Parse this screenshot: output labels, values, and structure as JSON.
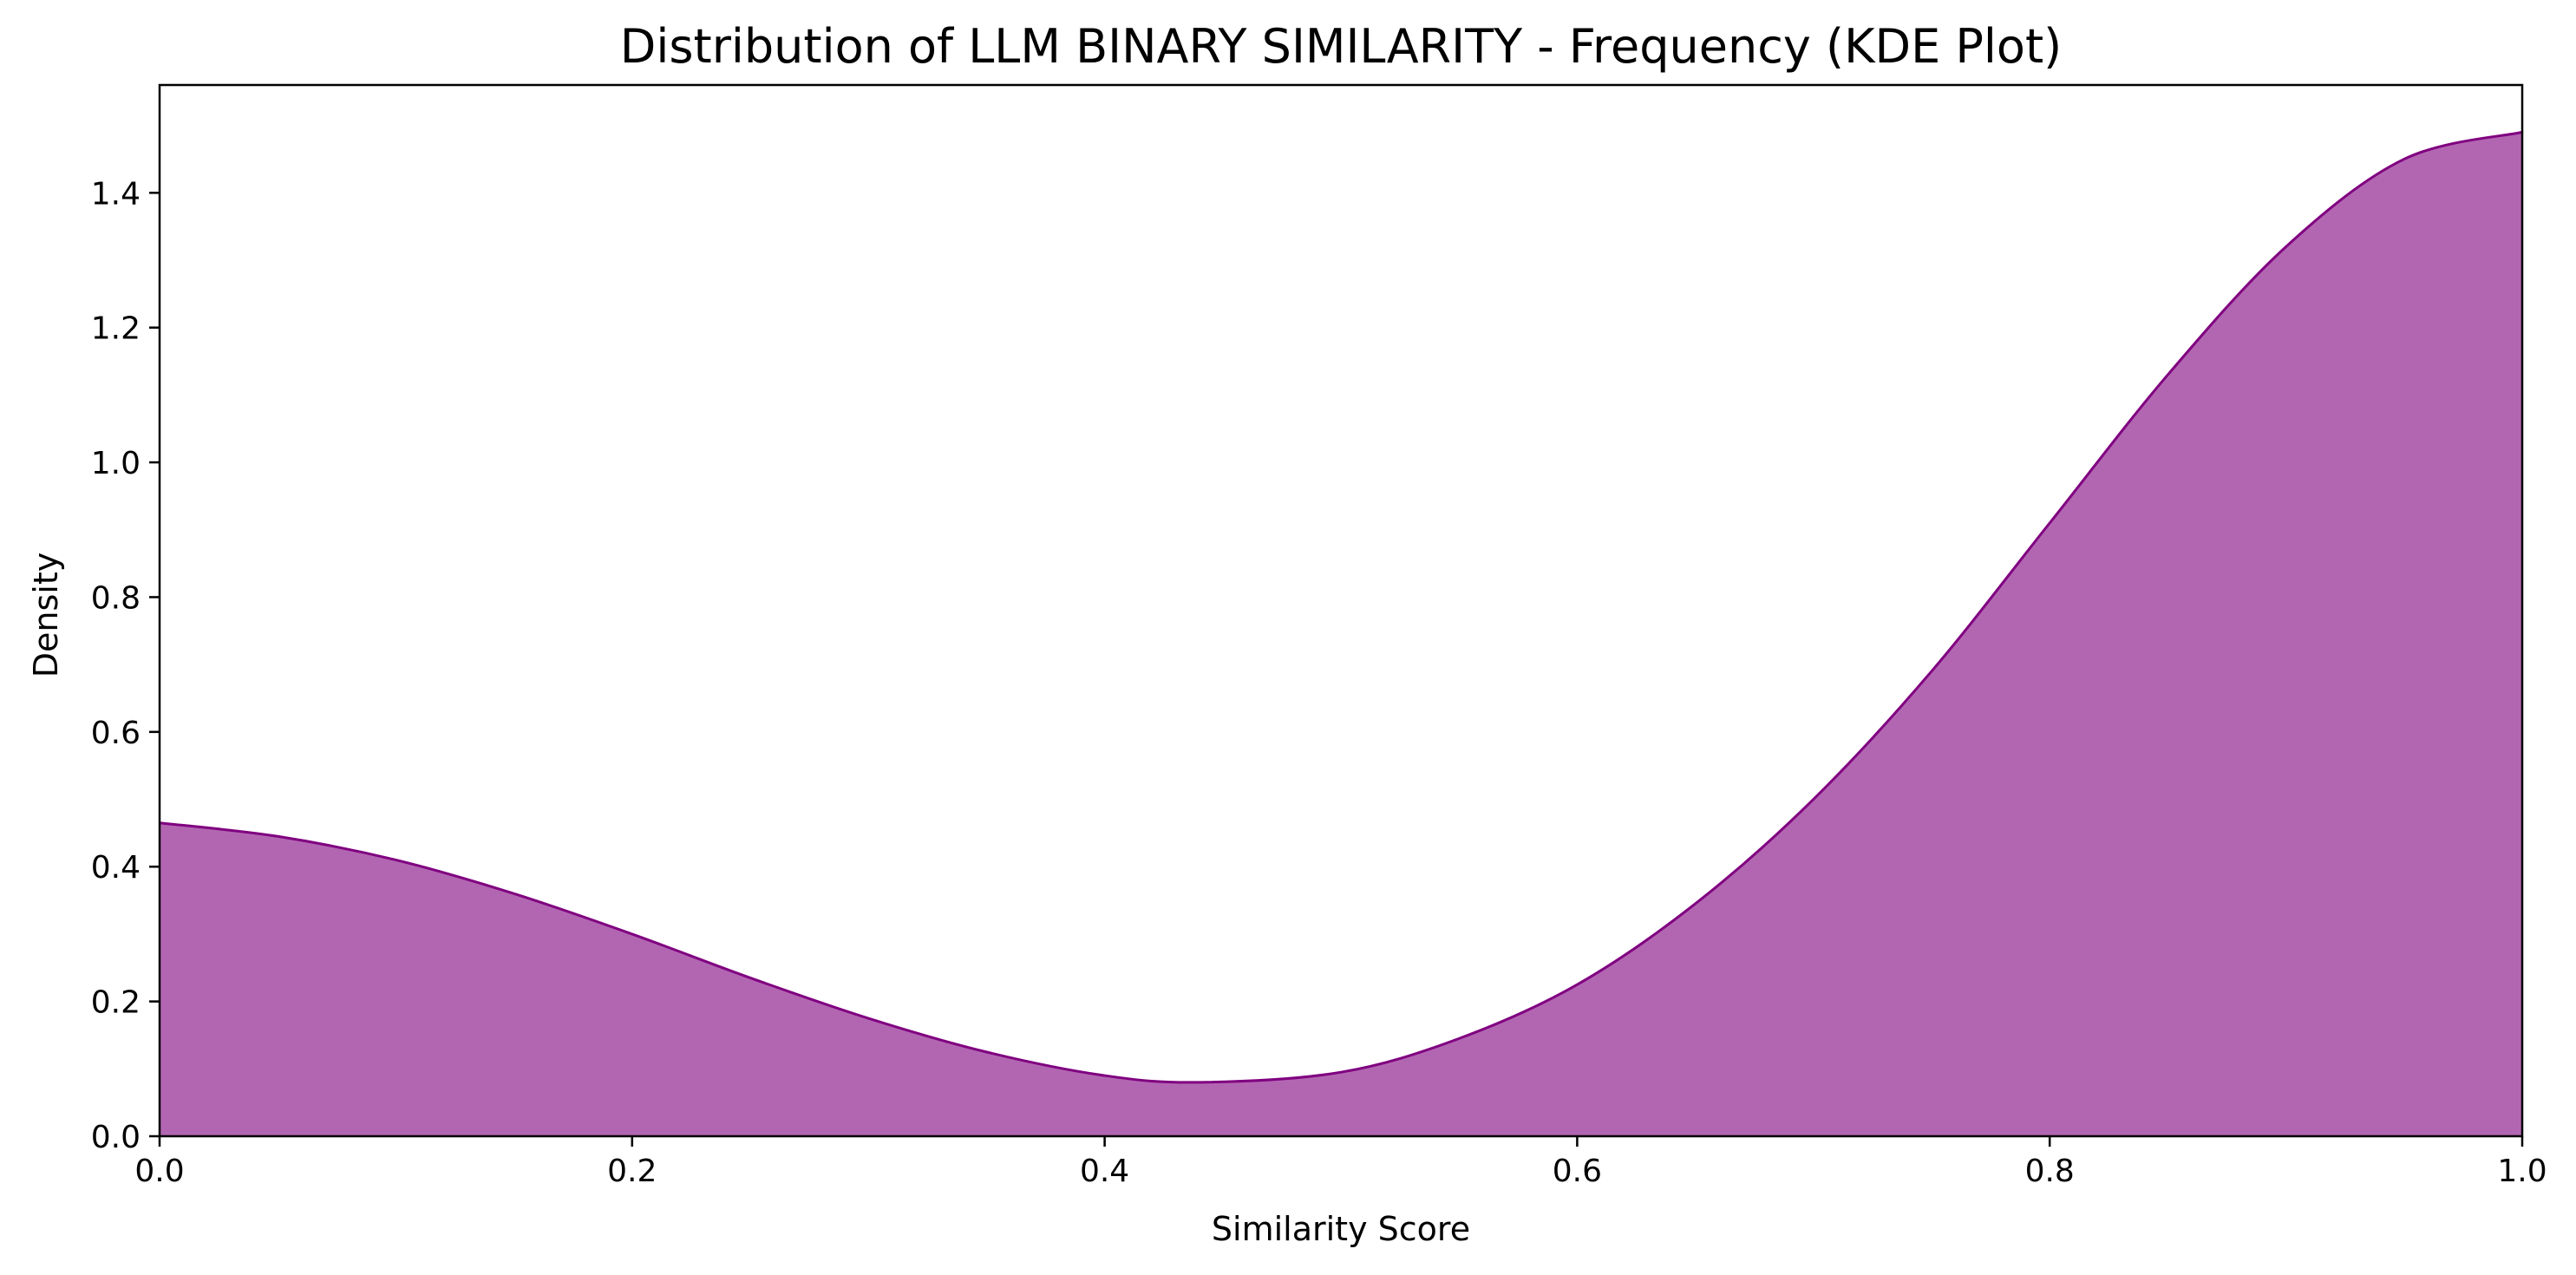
{
  "chart_data": {
    "type": "area",
    "title": "Distribution of LLM BINARY SIMILARITY - Frequency (KDE Plot)",
    "xlabel": "Similarity Score",
    "ylabel": "Density",
    "xlim": [
      0.0,
      1.0
    ],
    "ylim": [
      0.0,
      1.56
    ],
    "x_ticks": [
      0.0,
      0.2,
      0.4,
      0.6,
      0.8,
      1.0
    ],
    "x_tick_labels": [
      "0.0",
      "0.2",
      "0.4",
      "0.6",
      "0.8",
      "1.0"
    ],
    "y_ticks": [
      0.0,
      0.2,
      0.4,
      0.6,
      0.8,
      1.0,
      1.2,
      1.4
    ],
    "y_tick_labels": [
      "0.0",
      "0.2",
      "0.4",
      "0.6",
      "0.8",
      "1.0",
      "1.2",
      "1.4"
    ],
    "grid": false,
    "legend": "none",
    "colors": {
      "fill": "#b266b2",
      "line": "#800080",
      "axes": "#000000"
    },
    "series": [
      {
        "x": [
          0.0,
          0.05,
          0.1,
          0.15,
          0.2,
          0.25,
          0.3,
          0.35,
          0.4,
          0.44,
          0.5,
          0.55,
          0.6,
          0.65,
          0.7,
          0.75,
          0.8,
          0.85,
          0.9,
          0.95,
          1.0
        ],
        "values": [
          0.465,
          0.445,
          0.41,
          0.36,
          0.3,
          0.235,
          0.175,
          0.125,
          0.09,
          0.08,
          0.095,
          0.145,
          0.225,
          0.345,
          0.5,
          0.69,
          0.91,
          1.13,
          1.32,
          1.45,
          1.49
        ]
      }
    ]
  }
}
